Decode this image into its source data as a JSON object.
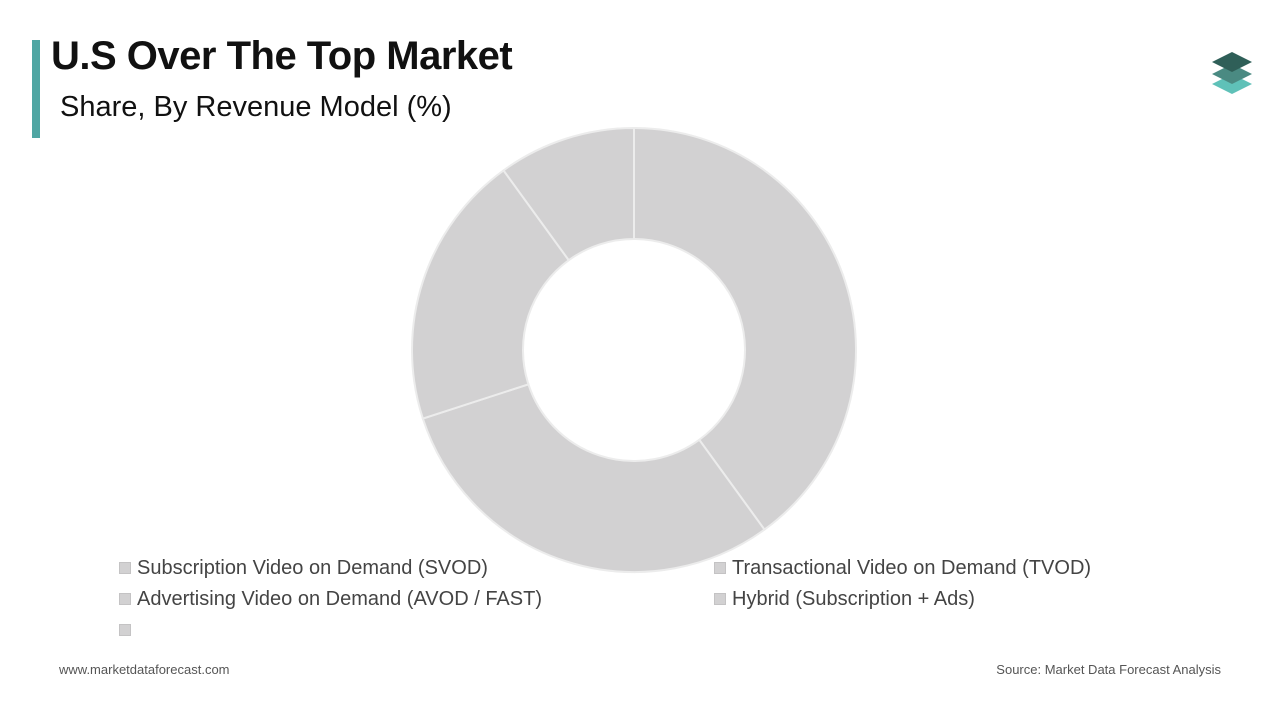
{
  "header": {
    "title": "U.S Over The Top Market",
    "subtitle": "Share, By Revenue Model (%)"
  },
  "footer": {
    "website": "www.marketdataforecast.com",
    "source": "Source: Market Data Forecast Analysis"
  },
  "logo": {
    "icon": "stacked-layers-icon",
    "colors": [
      "#2f5f58",
      "#4a8a82",
      "#5fc1b8"
    ]
  },
  "colors": {
    "accent": "#4fa6a3",
    "slice_fill": "#d2d1d2",
    "slice_border": "#ececec"
  },
  "chart_data": {
    "type": "pie",
    "variant": "donut",
    "categories": [
      "Subscription Video on Demand (SVOD)",
      "Transactional Video on Demand (TVOD)",
      "Advertising Video on Demand (AVOD / FAST)",
      "Hybrid (Subscription + Ads)",
      ""
    ],
    "values": [
      40,
      30,
      20,
      10,
      0
    ],
    "legend": "bottom"
  }
}
